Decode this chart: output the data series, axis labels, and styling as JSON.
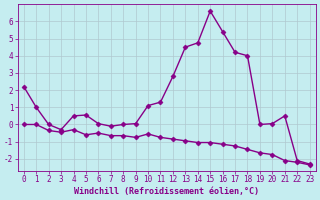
{
  "xlabel": "Windchill (Refroidissement éolien,°C)",
  "background_color": "#c5edf0",
  "line_color": "#880088",
  "grid_color": "#b0c8d0",
  "xlim": [
    -0.5,
    23.5
  ],
  "ylim": [
    -2.7,
    7.0
  ],
  "yticks": [
    -2,
    -1,
    0,
    1,
    2,
    3,
    4,
    5,
    6
  ],
  "xticks": [
    0,
    1,
    2,
    3,
    4,
    5,
    6,
    7,
    8,
    9,
    10,
    11,
    12,
    13,
    14,
    15,
    16,
    17,
    18,
    19,
    20,
    21,
    22,
    23
  ],
  "line1_x": [
    0,
    1,
    2,
    3,
    4,
    5,
    6,
    7,
    8,
    9,
    10,
    11,
    12,
    13,
    14,
    15,
    16,
    17,
    18,
    19,
    20,
    21,
    22,
    23
  ],
  "line1_y": [
    2.2,
    1.0,
    0.0,
    -0.3,
    0.5,
    0.55,
    0.05,
    -0.1,
    0.0,
    0.05,
    1.1,
    1.3,
    2.8,
    4.5,
    4.75,
    6.6,
    5.4,
    4.2,
    4.0,
    0.0,
    0.05,
    0.5,
    -2.1,
    -2.3
  ],
  "line2_x": [
    0,
    1,
    2,
    3,
    4,
    5,
    6,
    7,
    8,
    9,
    10,
    11,
    12,
    13,
    14,
    15,
    16,
    17,
    18,
    19,
    20,
    21,
    22,
    23
  ],
  "line2_y": [
    0.0,
    0.0,
    -0.35,
    -0.45,
    -0.3,
    -0.6,
    -0.5,
    -0.65,
    -0.65,
    -0.75,
    -0.55,
    -0.75,
    -0.85,
    -0.95,
    -1.05,
    -1.05,
    -1.15,
    -1.25,
    -1.45,
    -1.65,
    -1.75,
    -2.1,
    -2.2,
    -2.35
  ],
  "marker": "D",
  "marker_size": 2.5,
  "line_width": 1.0
}
